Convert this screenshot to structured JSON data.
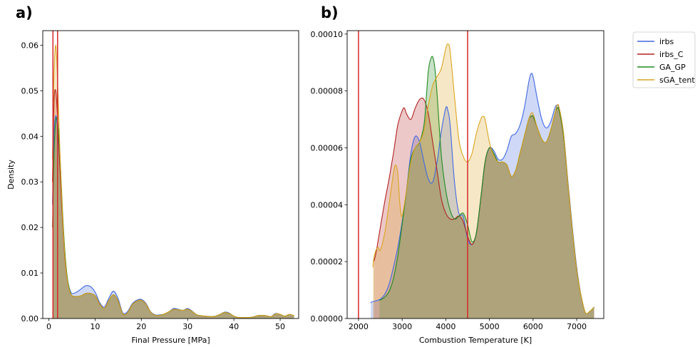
{
  "chart_data": [
    {
      "type": "area",
      "panel_label": "a)",
      "xlabel": "Final Pressure [MPa]",
      "ylabel": "Density",
      "xlim": [
        -1.3,
        54
      ],
      "ylim": [
        0,
        0.0632
      ],
      "xticks": [
        0,
        10,
        20,
        30,
        40,
        50
      ],
      "yticks": [
        0.0,
        0.01,
        0.02,
        0.03,
        0.04,
        0.05,
        0.06
      ],
      "ytick_labels": [
        "0.00",
        "0.01",
        "0.02",
        "0.03",
        "0.04",
        "0.05",
        "0.06"
      ],
      "vlines": [
        0.9,
        1.9
      ],
      "vline_color": "#d62728",
      "grid": false,
      "x": [
        0.8,
        1.0,
        1.2,
        1.5,
        1.8,
        2.1,
        2.5,
        3,
        3.5,
        4,
        4.5,
        5,
        6,
        7,
        8,
        9,
        10,
        11,
        12,
        13,
        14,
        15,
        16,
        17,
        18,
        19,
        20,
        21,
        22,
        23,
        24,
        25,
        26,
        27,
        28,
        29,
        30,
        31,
        32,
        33,
        34,
        35,
        36,
        37,
        38,
        39,
        40,
        41,
        42,
        43,
        44,
        45,
        46,
        47,
        48,
        49,
        50,
        51,
        52,
        53
      ],
      "series": [
        {
          "name": "irbs",
          "color": "#4169e1",
          "values": [
            0.025,
            0.036,
            0.042,
            0.0445,
            0.043,
            0.039,
            0.032,
            0.022,
            0.014,
            0.009,
            0.0065,
            0.0055,
            0.0058,
            0.0065,
            0.0072,
            0.007,
            0.0058,
            0.0035,
            0.0025,
            0.0045,
            0.006,
            0.0043,
            0.0012,
            0.0015,
            0.0032,
            0.004,
            0.0042,
            0.0033,
            0.0015,
            0.0008,
            0.0008,
            0.001,
            0.0015,
            0.0022,
            0.002,
            0.0018,
            0.0022,
            0.0016,
            0.0008,
            0.0006,
            0.0005,
            0.0004,
            0.0005,
            0.0009,
            0.0014,
            0.0012,
            0.0005,
            0.0002,
            0.0002,
            0.0002,
            0.0003,
            0.0006,
            0.0007,
            0.0006,
            0.0004,
            0.0011,
            0.0009,
            0.0005,
            0.0009,
            0.0006
          ]
        },
        {
          "name": "irbs_C",
          "color": "#b22222",
          "values": [
            0.03,
            0.042,
            0.049,
            0.05,
            0.046,
            0.04,
            0.031,
            0.021,
            0.013,
            0.0085,
            0.006,
            0.005,
            0.0048,
            0.005,
            0.0055,
            0.0055,
            0.005,
            0.0032,
            0.0022,
            0.004,
            0.0052,
            0.0038,
            0.001,
            0.0012,
            0.003,
            0.0038,
            0.004,
            0.0031,
            0.0014,
            0.0007,
            0.0007,
            0.001,
            0.0015,
            0.002,
            0.0019,
            0.0018,
            0.002,
            0.0015,
            0.0008,
            0.0006,
            0.0005,
            0.0004,
            0.0005,
            0.0009,
            0.0013,
            0.0011,
            0.0005,
            0.0002,
            0.0002,
            0.0002,
            0.0003,
            0.0006,
            0.0007,
            0.0006,
            0.0004,
            0.001,
            0.0009,
            0.0005,
            0.0009,
            0.0006
          ]
        },
        {
          "name": "GA_GP",
          "color": "#228b22",
          "values": [
            0.02,
            0.03,
            0.038,
            0.0435,
            0.0438,
            0.041,
            0.034,
            0.023,
            0.0145,
            0.009,
            0.0062,
            0.005,
            0.0048,
            0.005,
            0.0055,
            0.0055,
            0.005,
            0.0032,
            0.0022,
            0.004,
            0.0052,
            0.0038,
            0.001,
            0.0012,
            0.003,
            0.0038,
            0.004,
            0.0031,
            0.0014,
            0.0007,
            0.0007,
            0.001,
            0.0015,
            0.002,
            0.0019,
            0.0018,
            0.002,
            0.0015,
            0.0008,
            0.0006,
            0.0005,
            0.0004,
            0.0005,
            0.0009,
            0.0013,
            0.0011,
            0.0005,
            0.0002,
            0.0002,
            0.0002,
            0.0003,
            0.0006,
            0.0007,
            0.0006,
            0.0004,
            0.001,
            0.0009,
            0.0005,
            0.0009,
            0.0006
          ]
        },
        {
          "name": "sGA_tent",
          "color": "#daa520",
          "values": [
            0.035,
            0.048,
            0.056,
            0.06,
            0.055,
            0.046,
            0.034,
            0.022,
            0.0135,
            0.0085,
            0.006,
            0.005,
            0.0048,
            0.005,
            0.0055,
            0.0055,
            0.005,
            0.0032,
            0.0022,
            0.004,
            0.0052,
            0.0038,
            0.001,
            0.0012,
            0.003,
            0.0038,
            0.004,
            0.0031,
            0.0014,
            0.0007,
            0.0007,
            0.001,
            0.0015,
            0.002,
            0.0019,
            0.0018,
            0.002,
            0.0015,
            0.0008,
            0.0006,
            0.0005,
            0.0004,
            0.0005,
            0.0009,
            0.0013,
            0.0011,
            0.0005,
            0.0002,
            0.0002,
            0.0002,
            0.0003,
            0.0006,
            0.0007,
            0.0006,
            0.0004,
            0.001,
            0.0009,
            0.0005,
            0.0009,
            0.0006
          ]
        }
      ]
    },
    {
      "type": "area",
      "panel_label": "b)",
      "xlabel": "Combustion Temperature [K]",
      "ylabel": "",
      "xlim": [
        1740,
        7620
      ],
      "ylim": [
        0,
        0.0001012
      ],
      "xticks": [
        2000,
        3000,
        4000,
        5000,
        6000,
        7000
      ],
      "yticks": [
        0,
        2e-05,
        4e-05,
        6e-05,
        8e-05,
        0.0001
      ],
      "ytick_labels": [
        "0.00000",
        "0.00002",
        "0.00004",
        "0.00006",
        "0.00008",
        "0.00010"
      ],
      "vlines": [
        2000,
        4500
      ],
      "vline_color": "#d62728",
      "grid": false,
      "series": [
        {
          "name": "irbs",
          "color": "#4169e1",
          "x": [
            2280,
            2300,
            2400,
            2500,
            2600,
            2700,
            2800,
            2900,
            3000,
            3100,
            3200,
            3300,
            3400,
            3500,
            3600,
            3700,
            3800,
            3900,
            4000,
            4050,
            4100,
            4200,
            4300,
            4400,
            4500,
            4600,
            4700,
            4800,
            4900,
            5000,
            5100,
            5200,
            5300,
            5400,
            5500,
            5600,
            5700,
            5800,
            5900,
            5950,
            6000,
            6100,
            6200,
            6300,
            6400,
            6500,
            6550,
            6600,
            6700,
            6800,
            6900,
            7000,
            7100,
            7200,
            7300,
            7400
          ],
          "values": [
            5.5e-06,
            5.8e-06,
            6.2e-06,
            6.8e-06,
            8.5e-06,
            1.2e-05,
            1.8e-05,
            2.5e-05,
            3.4e-05,
            4.5e-05,
            5.8e-05,
            6.4e-05,
            6.2e-05,
            5.5e-05,
            4.9e-05,
            4.8e-05,
            5.5e-05,
            6.6e-05,
            7.4e-05,
            7.3e-05,
            6.8e-05,
            4.8e-05,
            3.7e-05,
            3.6e-05,
            2.8e-05,
            2.6e-05,
            3e-05,
            4.2e-05,
            5.5e-05,
            6e-05,
            5.9e-05,
            5.6e-05,
            5.6e-05,
            5.9e-05,
            6.4e-05,
            6.5e-05,
            6.8e-05,
            7.4e-05,
            8.3e-05,
            8.6e-05,
            8.5e-05,
            7.7e-05,
            7e-05,
            6.7e-05,
            6.9e-05,
            7.4e-05,
            7.5e-05,
            7.4e-05,
            6.5e-05,
            4.8e-05,
            3.2e-05,
            1.8e-05,
            8e-06,
            2e-06,
            2.5e-06,
            4e-06
          ]
        },
        {
          "name": "irbs_C",
          "color": "#b22222",
          "x": [
            2350,
            2400,
            2500,
            2600,
            2700,
            2800,
            2900,
            3000,
            3050,
            3100,
            3200,
            3300,
            3400,
            3500,
            3600,
            3700,
            3800,
            3900,
            4000,
            4100,
            4200,
            4300,
            4400,
            4500,
            4600,
            4700,
            4800,
            4900,
            5000,
            5100,
            5200,
            5300,
            5400,
            5500,
            5600,
            5700,
            5800,
            5900,
            5950,
            6000,
            6100,
            6200,
            6300,
            6400,
            6500,
            6550,
            6600,
            6700,
            6800,
            6900,
            7000,
            7100,
            7200,
            7300,
            7400
          ],
          "values": [
            2e-05,
            2.3e-05,
            3.2e-05,
            4.1e-05,
            4.9e-05,
            5.8e-05,
            6.8e-05,
            7.3e-05,
            7.4e-05,
            7.2e-05,
            7e-05,
            7.4e-05,
            7.7e-05,
            7.7e-05,
            7.2e-05,
            6.2e-05,
            5.2e-05,
            4.2e-05,
            3.7e-05,
            3.5e-05,
            3.5e-05,
            3.6e-05,
            3.4e-05,
            2.9e-05,
            2.6e-05,
            3e-05,
            4.2e-05,
            5.5e-05,
            6e-05,
            5.8e-05,
            5.5e-05,
            5.5e-05,
            5.4e-05,
            5e-05,
            5.2e-05,
            5.8e-05,
            6.4e-05,
            7e-05,
            7.1e-05,
            7.1e-05,
            6.7e-05,
            6.3e-05,
            6.2e-05,
            6.6e-05,
            7.2e-05,
            7.4e-05,
            7.3e-05,
            6.4e-05,
            4.7e-05,
            3.1e-05,
            1.7e-05,
            8e-06,
            2e-06,
            2.5e-06,
            4e-06
          ]
        },
        {
          "name": "GA_GP",
          "color": "#228b22",
          "x": [
            2480,
            2500,
            2600,
            2700,
            2800,
            2900,
            3000,
            3100,
            3200,
            3300,
            3400,
            3500,
            3550,
            3600,
            3650,
            3700,
            3750,
            3800,
            3900,
            4000,
            4100,
            4200,
            4300,
            4400,
            4500,
            4600,
            4700,
            4800,
            4900,
            5000,
            5100,
            5200,
            5300,
            5400,
            5500,
            5600,
            5700,
            5800,
            5900,
            5950,
            6000,
            6100,
            6200,
            6300,
            6400,
            6500,
            6550,
            6600,
            6700,
            6800,
            6900,
            7000,
            7100,
            7200,
            7300,
            7400
          ],
          "values": [
            6.5e-06,
            6.5e-06,
            7.5e-06,
            9.5e-06,
            1.4e-05,
            2.2e-05,
            3.3e-05,
            4.5e-05,
            5.6e-05,
            6e-05,
            6.2e-05,
            6.8e-05,
            7.7e-05,
            8.7e-05,
            9.1e-05,
            9.2e-05,
            8.8e-05,
            7.9e-05,
            5.7e-05,
            4.5e-05,
            3.8e-05,
            3.5e-05,
            3.6e-05,
            3.7e-05,
            3.3e-05,
            2.7e-05,
            3e-05,
            4.2e-05,
            5.5e-05,
            6e-05,
            5.8e-05,
            5.5e-05,
            5.5e-05,
            5.4e-05,
            5e-05,
            5.2e-05,
            5.8e-05,
            6.4e-05,
            7e-05,
            7.1e-05,
            7.1e-05,
            6.7e-05,
            6.3e-05,
            6.2e-05,
            6.6e-05,
            7.2e-05,
            7.4e-05,
            7.3e-05,
            6.4e-05,
            4.7e-05,
            3.1e-05,
            1.7e-05,
            8e-06,
            2e-06,
            2.5e-06,
            4e-06
          ]
        },
        {
          "name": "sGA_tent",
          "color": "#daa520",
          "x": [
            2330,
            2350,
            2400,
            2450,
            2500,
            2600,
            2700,
            2800,
            2850,
            2900,
            2950,
            3000,
            3100,
            3200,
            3300,
            3400,
            3500,
            3600,
            3700,
            3800,
            3900,
            4000,
            4050,
            4100,
            4200,
            4300,
            4400,
            4500,
            4600,
            4700,
            4800,
            4850,
            4900,
            5000,
            5100,
            5200,
            5300,
            5400,
            5500,
            5600,
            5700,
            5800,
            5900,
            5950,
            6000,
            6100,
            6200,
            6300,
            6400,
            6500,
            6550,
            6600,
            6700,
            6800,
            6900,
            7000,
            7100,
            7200,
            7300,
            7400
          ],
          "values": [
            1.8e-05,
            2.1e-05,
            2.4e-05,
            2.5e-05,
            2.4e-05,
            3e-05,
            4e-05,
            5.1e-05,
            5.4e-05,
            5.1e-05,
            4e-05,
            3.6e-05,
            4.5e-05,
            5.5e-05,
            6e-05,
            6.2e-05,
            6.6e-05,
            7.5e-05,
            8.2e-05,
            8.5e-05,
            8.8e-05,
            9.5e-05,
            9.65e-05,
            9.4e-05,
            7.8e-05,
            6.3e-05,
            5.7e-05,
            5.5e-05,
            5.8e-05,
            6.5e-05,
            7e-05,
            7.1e-05,
            7e-05,
            6.2e-05,
            5.7e-05,
            5.5e-05,
            5.5e-05,
            5.4e-05,
            5e-05,
            5.2e-05,
            5.8e-05,
            6.4e-05,
            7e-05,
            7.2e-05,
            7.2e-05,
            6.7e-05,
            6.3e-05,
            6.2e-05,
            6.6e-05,
            7.2e-05,
            7.5e-05,
            7.4e-05,
            6.5e-05,
            4.7e-05,
            3.1e-05,
            1.7e-05,
            8e-06,
            2e-06,
            2.5e-06,
            4e-06
          ]
        }
      ]
    }
  ],
  "legend": {
    "placement": "upper-right-outside",
    "entries": [
      "irbs",
      "irbs_C",
      "GA_GP",
      "sGA_tent"
    ]
  }
}
